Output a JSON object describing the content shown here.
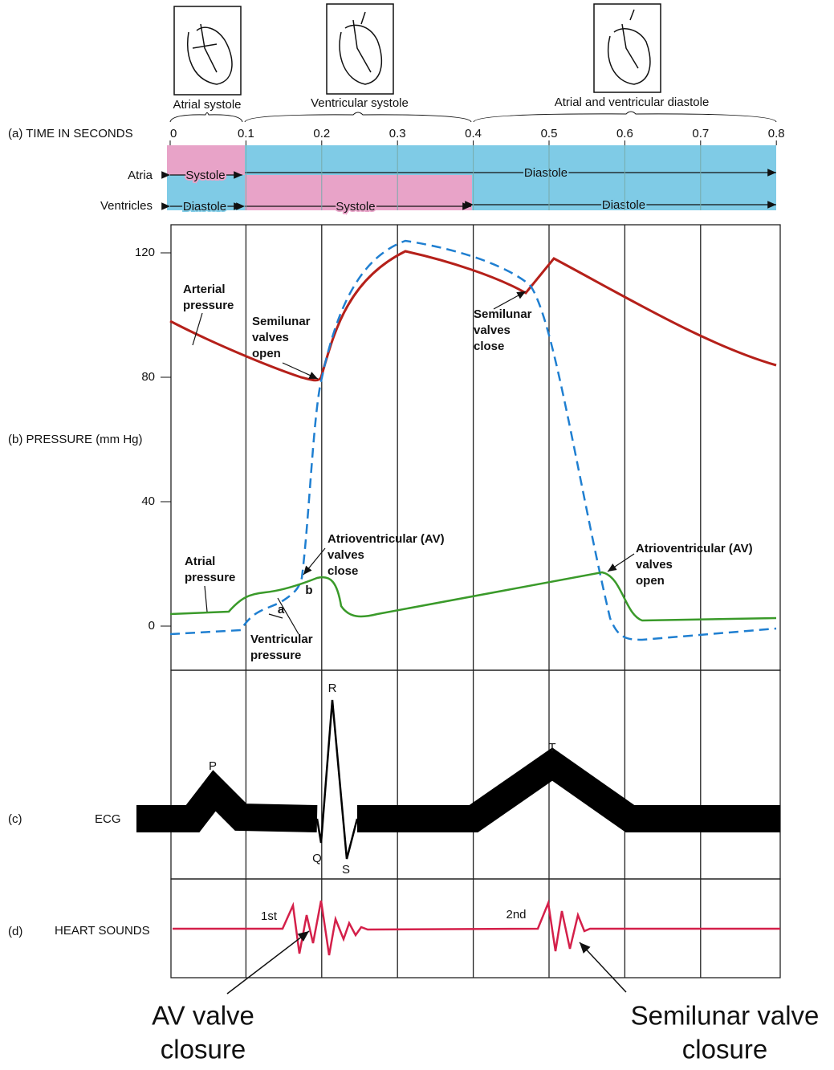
{
  "phases": {
    "atrial_systole": "Atrial systole",
    "ventricular_systole": "Ventricular systole",
    "diastole": "Atrial and ventricular diastole"
  },
  "time_axis": {
    "label": "(a) TIME IN SECONDS",
    "ticks": [
      "0",
      "0.1",
      "0.2",
      "0.3",
      "0.4",
      "0.5",
      "0.6",
      "0.7",
      "0.8"
    ]
  },
  "rows": {
    "atria": {
      "label": "Atria",
      "systole": "Systole",
      "diastole": "Diastole"
    },
    "ventricles": {
      "label": "Ventricles",
      "diastole_1": "Diastole",
      "systole": "Systole",
      "diastole_2": "Diastole"
    }
  },
  "pressure": {
    "label": "(b) PRESSURE (mm Hg)",
    "ticks": [
      "120",
      "80",
      "40",
      "0"
    ],
    "annotations": {
      "arterial": [
        "Arterial",
        "pressure"
      ],
      "semilunar_open": [
        "Semilunar",
        "valves",
        "open"
      ],
      "semilunar_close": [
        "Semilunar",
        "valves",
        "close"
      ],
      "av_close": [
        "Atrioventricular (AV)",
        "valves",
        "close"
      ],
      "av_open": [
        "Atrioventricular (AV)",
        "valves",
        "open"
      ],
      "atrial": [
        "Atrial",
        "pressure"
      ],
      "ventricular": [
        "Ventricular",
        "pressure"
      ],
      "a": "a",
      "b": "b"
    }
  },
  "ecg": {
    "letter": "(c)",
    "label": "ECG",
    "waves": {
      "P": "P",
      "Q": "Q",
      "R": "R",
      "S": "S",
      "T": "T"
    }
  },
  "heart_sounds": {
    "letter": "(d)",
    "label": "HEART SOUNDS",
    "first": "1st",
    "second": "2nd"
  },
  "captions": {
    "av": [
      "AV valve",
      "closure"
    ],
    "semilunar": [
      "Semilunar valve",
      "closure"
    ]
  }
}
